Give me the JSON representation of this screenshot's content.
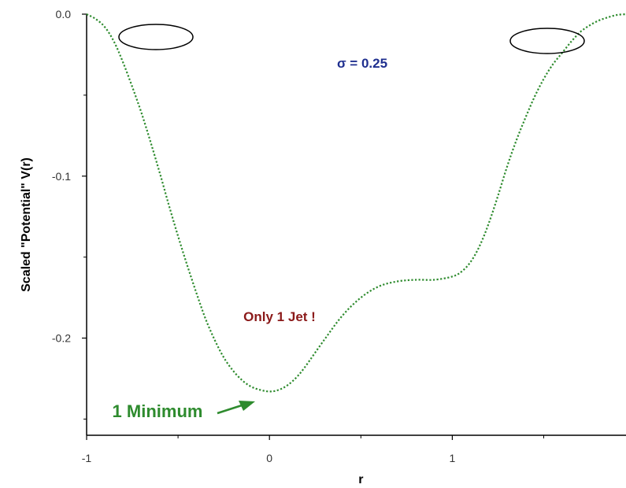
{
  "chart_data": {
    "type": "line",
    "title": "",
    "xlabel": "r",
    "ylabel": "Scaled \"Potential\" V(r)",
    "xlim": [
      -1.0,
      1.95
    ],
    "ylim": [
      -0.26,
      0.0
    ],
    "x_ticks": [
      -1,
      0,
      1
    ],
    "x_tick_labels": [
      "-1",
      "0",
      "1"
    ],
    "y_ticks": [
      0.0,
      -0.1,
      -0.2
    ],
    "y_tick_labels": [
      "0.0",
      "-0.1",
      "-0.2"
    ],
    "grid": false,
    "series": [
      {
        "style": "dotted",
        "color": "#2e8b2e",
        "points": [
          [
            -1.0,
            0.0
          ],
          [
            -0.95,
            -0.003
          ],
          [
            -0.9,
            -0.008
          ],
          [
            -0.85,
            -0.017
          ],
          [
            -0.8,
            -0.03
          ],
          [
            -0.75,
            -0.045
          ],
          [
            -0.7,
            -0.061
          ],
          [
            -0.65,
            -0.079
          ],
          [
            -0.6,
            -0.098
          ],
          [
            -0.55,
            -0.118
          ],
          [
            -0.5,
            -0.137
          ],
          [
            -0.45,
            -0.155
          ],
          [
            -0.4,
            -0.172
          ],
          [
            -0.35,
            -0.188
          ],
          [
            -0.3,
            -0.201
          ],
          [
            -0.25,
            -0.212
          ],
          [
            -0.2,
            -0.22
          ],
          [
            -0.15,
            -0.226
          ],
          [
            -0.1,
            -0.23
          ],
          [
            -0.05,
            -0.232
          ],
          [
            0.0,
            -0.233
          ],
          [
            0.05,
            -0.232
          ],
          [
            0.1,
            -0.229
          ],
          [
            0.15,
            -0.224
          ],
          [
            0.2,
            -0.217
          ],
          [
            0.3,
            -0.201
          ],
          [
            0.4,
            -0.186
          ],
          [
            0.5,
            -0.175
          ],
          [
            0.6,
            -0.168
          ],
          [
            0.7,
            -0.165
          ],
          [
            0.8,
            -0.164
          ],
          [
            0.9,
            -0.164
          ],
          [
            1.0,
            -0.162
          ],
          [
            1.05,
            -0.159
          ],
          [
            1.1,
            -0.153
          ],
          [
            1.15,
            -0.143
          ],
          [
            1.2,
            -0.129
          ],
          [
            1.25,
            -0.112
          ],
          [
            1.3,
            -0.094
          ],
          [
            1.35,
            -0.078
          ],
          [
            1.4,
            -0.064
          ],
          [
            1.45,
            -0.051
          ],
          [
            1.5,
            -0.04
          ],
          [
            1.55,
            -0.031
          ],
          [
            1.6,
            -0.024
          ],
          [
            1.65,
            -0.017
          ],
          [
            1.7,
            -0.011
          ],
          [
            1.75,
            -0.007
          ],
          [
            1.8,
            -0.004
          ],
          [
            1.85,
            -0.002
          ],
          [
            1.9,
            -0.0005
          ],
          [
            1.95,
            0.0
          ]
        ]
      }
    ],
    "annotations": {
      "sigma": "σ = 0.25",
      "jet_note": "Only 1 Jet !",
      "minimum": "1 Minimum"
    },
    "colors": {
      "curve": "#2e8b2e",
      "sigma_text": "#1f2f8f",
      "jet_text": "#8b1a1a",
      "minimum_text": "#2e8b2e",
      "axis": "#000000"
    }
  }
}
